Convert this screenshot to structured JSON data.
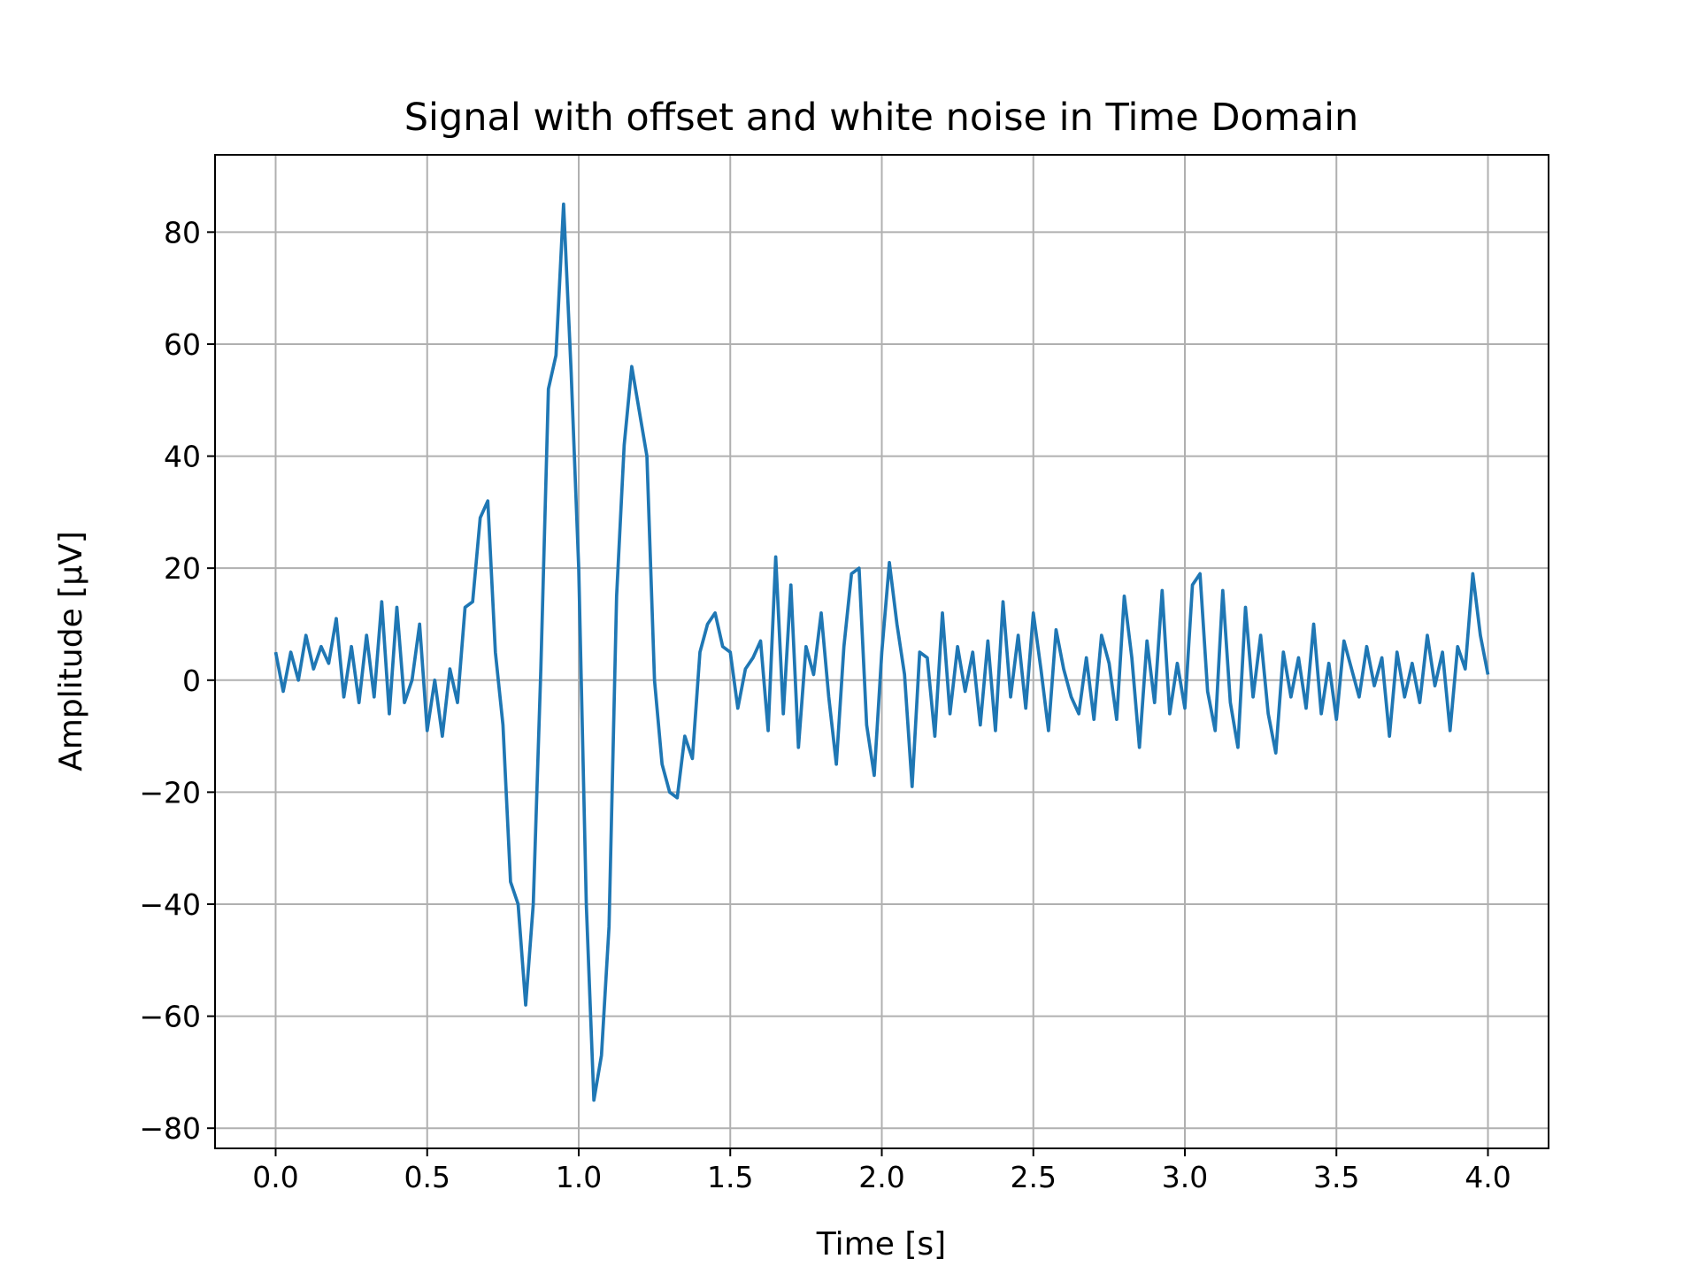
{
  "chart_data": {
    "type": "line",
    "title": "Signal with offset and white noise in Time Domain",
    "xlabel": "Time [s]",
    "ylabel": "Amplitude [μV]",
    "color": "#1f77b4",
    "grid": true,
    "xlim": [
      -0.2,
      4.2
    ],
    "ylim": [
      -83.6,
      93.8
    ],
    "xticks": [
      {
        "value": 0,
        "label": "0.0"
      },
      0.5,
      {
        "value": 1,
        "label": "1.0"
      },
      1.5,
      {
        "value": 2,
        "label": "2.0"
      },
      2.5,
      {
        "value": 3,
        "label": "3.0"
      },
      3.5,
      {
        "value": 4,
        "label": "4.0"
      }
    ],
    "yticks": [
      {
        "value": -80,
        "label": "−80"
      },
      {
        "value": -60,
        "label": "−60"
      },
      {
        "value": -40,
        "label": "−40"
      },
      {
        "value": -20,
        "label": "−20"
      },
      0,
      20,
      40,
      60,
      80
    ],
    "x": [
      0,
      0.025,
      0.05,
      0.075,
      0.1,
      0.125,
      0.15,
      0.175,
      0.2,
      0.225,
      0.25,
      0.275,
      0.3,
      0.325,
      0.35,
      0.375,
      0.4,
      0.425,
      0.45,
      0.475,
      0.5,
      0.525,
      0.55,
      0.575,
      0.6,
      0.625,
      0.65,
      0.675,
      0.7,
      0.725,
      0.75,
      0.775,
      0.8,
      0.825,
      0.85,
      0.875,
      0.9,
      0.925,
      0.95,
      0.975,
      1,
      1.025,
      1.05,
      1.075,
      1.1,
      1.125,
      1.15,
      1.175,
      1.2,
      1.225,
      1.25,
      1.275,
      1.3,
      1.325,
      1.35,
      1.375,
      1.4,
      1.425,
      1.45,
      1.475,
      1.5,
      1.525,
      1.55,
      1.575,
      1.6,
      1.625,
      1.65,
      1.675,
      1.7,
      1.725,
      1.75,
      1.775,
      1.8,
      1.825,
      1.85,
      1.875,
      1.9,
      1.925,
      1.95,
      1.975,
      2,
      2.025,
      2.05,
      2.075,
      2.1,
      2.125,
      2.15,
      2.175,
      2.2,
      2.225,
      2.25,
      2.275,
      2.3,
      2.325,
      2.35,
      2.375,
      2.4,
      2.425,
      2.45,
      2.475,
      2.5,
      2.525,
      2.55,
      2.575,
      2.6,
      2.625,
      2.65,
      2.675,
      2.7,
      2.725,
      2.75,
      2.775,
      2.8,
      2.825,
      2.85,
      2.875,
      2.9,
      2.925,
      2.95,
      2.975,
      3,
      3.025,
      3.05,
      3.075,
      3.1,
      3.125,
      3.15,
      3.175,
      3.2,
      3.225,
      3.25,
      3.275,
      3.3,
      3.325,
      3.35,
      3.375,
      3.4,
      3.425,
      3.45,
      3.475,
      3.5,
      3.525,
      3.55,
      3.575,
      3.6,
      3.625,
      3.65,
      3.675,
      3.7,
      3.725,
      3.75,
      3.775,
      3.8,
      3.825,
      3.85,
      3.875,
      3.9,
      3.925,
      3.95,
      3.975,
      4
    ],
    "values": [
      5,
      -2,
      5,
      0,
      8,
      2,
      6,
      3,
      11,
      -3,
      6,
      -4,
      8,
      -3,
      14,
      -6,
      13,
      -4,
      0,
      10,
      -9,
      0,
      -10,
      2,
      -4,
      13,
      14,
      29,
      32,
      5,
      -8,
      -36,
      -40,
      -58,
      -40,
      2,
      52,
      58,
      85,
      55,
      20,
      -40,
      -75,
      -67,
      -44,
      15,
      42,
      56,
      48,
      40,
      0,
      -15,
      -20,
      -21,
      -10,
      -14,
      5,
      10,
      12,
      6,
      5,
      -5,
      2,
      4,
      7,
      -9,
      22,
      -6,
      17,
      -12,
      6,
      1,
      12,
      -3,
      -15,
      6,
      19,
      20,
      -8,
      -17,
      5,
      21,
      10,
      1,
      -19,
      5,
      4,
      -10,
      12,
      -6,
      6,
      -2,
      5,
      -8,
      7,
      -9,
      14,
      -3,
      8,
      -5,
      12,
      2,
      -9,
      9,
      2,
      -3,
      -6,
      4,
      -7,
      8,
      3,
      -7,
      15,
      4,
      -12,
      7,
      -4,
      16,
      -6,
      3,
      -5,
      17,
      19,
      -2,
      -9,
      16,
      -4,
      -12,
      13,
      -3,
      8,
      -6,
      -13,
      5,
      -3,
      4,
      -5,
      10,
      -6,
      3,
      -7,
      7,
      2,
      -3,
      6,
      -1,
      4,
      -10,
      5,
      -3,
      3,
      -4,
      8,
      -1,
      5,
      -9,
      6,
      2,
      19,
      8,
      1
    ]
  }
}
